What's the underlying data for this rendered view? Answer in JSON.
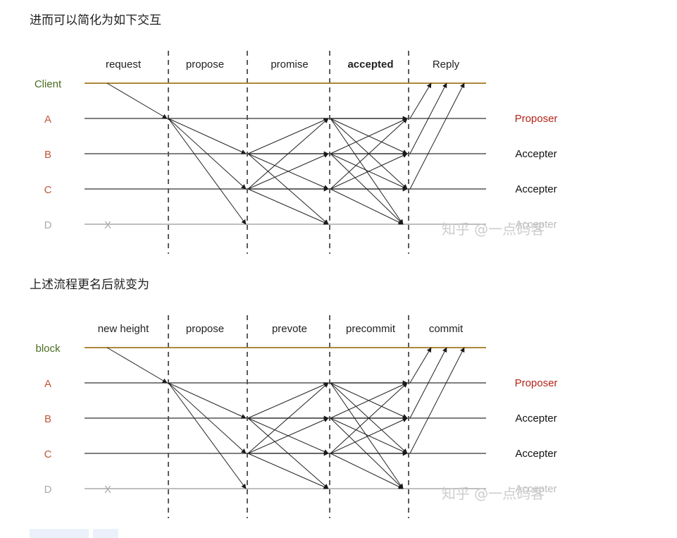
{
  "sections": [
    {
      "heading": "进而可以简化为如下交互",
      "phases": [
        "request",
        "propose",
        "promise",
        "accepted",
        "Reply"
      ],
      "phase_bold_index": 3,
      "rows": [
        {
          "label": "Client",
          "label_color": "#4a6e1f",
          "role": "",
          "role_color": "#000000",
          "line_color": "#a0781e"
        },
        {
          "label": "A",
          "label_color": "#c0563a",
          "role": "Proposer",
          "role_color": "#b42318",
          "line_color": "#555555"
        },
        {
          "label": "B",
          "label_color": "#c0563a",
          "role": "Accepter",
          "role_color": "#111111",
          "line_color": "#555555"
        },
        {
          "label": "C",
          "label_color": "#c0563a",
          "role": "Accepter",
          "role_color": "#111111",
          "line_color": "#555555"
        },
        {
          "label": "D",
          "label_color": "#aaaaaa",
          "role": "Accepter",
          "role_color": "#bbbbbb",
          "line_color": "#aaaaaa"
        }
      ],
      "d_marker": "X",
      "watermark": "知乎 @一点码客"
    },
    {
      "heading": "上述流程更名后就变为",
      "phases": [
        "new height",
        "propose",
        "prevote",
        "precommit",
        "commit"
      ],
      "phase_bold_index": -1,
      "rows": [
        {
          "label": "block",
          "label_color": "#4a6e1f",
          "role": "",
          "role_color": "#000000",
          "line_color": "#a0781e"
        },
        {
          "label": "A",
          "label_color": "#c0563a",
          "role": "Proposer",
          "role_color": "#b42318",
          "line_color": "#555555"
        },
        {
          "label": "B",
          "label_color": "#c0563a",
          "role": "Accepter",
          "role_color": "#111111",
          "line_color": "#555555"
        },
        {
          "label": "C",
          "label_color": "#c0563a",
          "role": "Accepter",
          "role_color": "#111111",
          "line_color": "#555555"
        },
        {
          "label": "D",
          "label_color": "#aaaaaa",
          "role": "Accepter",
          "role_color": "#bbbbbb",
          "line_color": "#aaaaaa"
        }
      ],
      "d_marker": "X",
      "watermark": "知乎 @一点码客"
    }
  ]
}
